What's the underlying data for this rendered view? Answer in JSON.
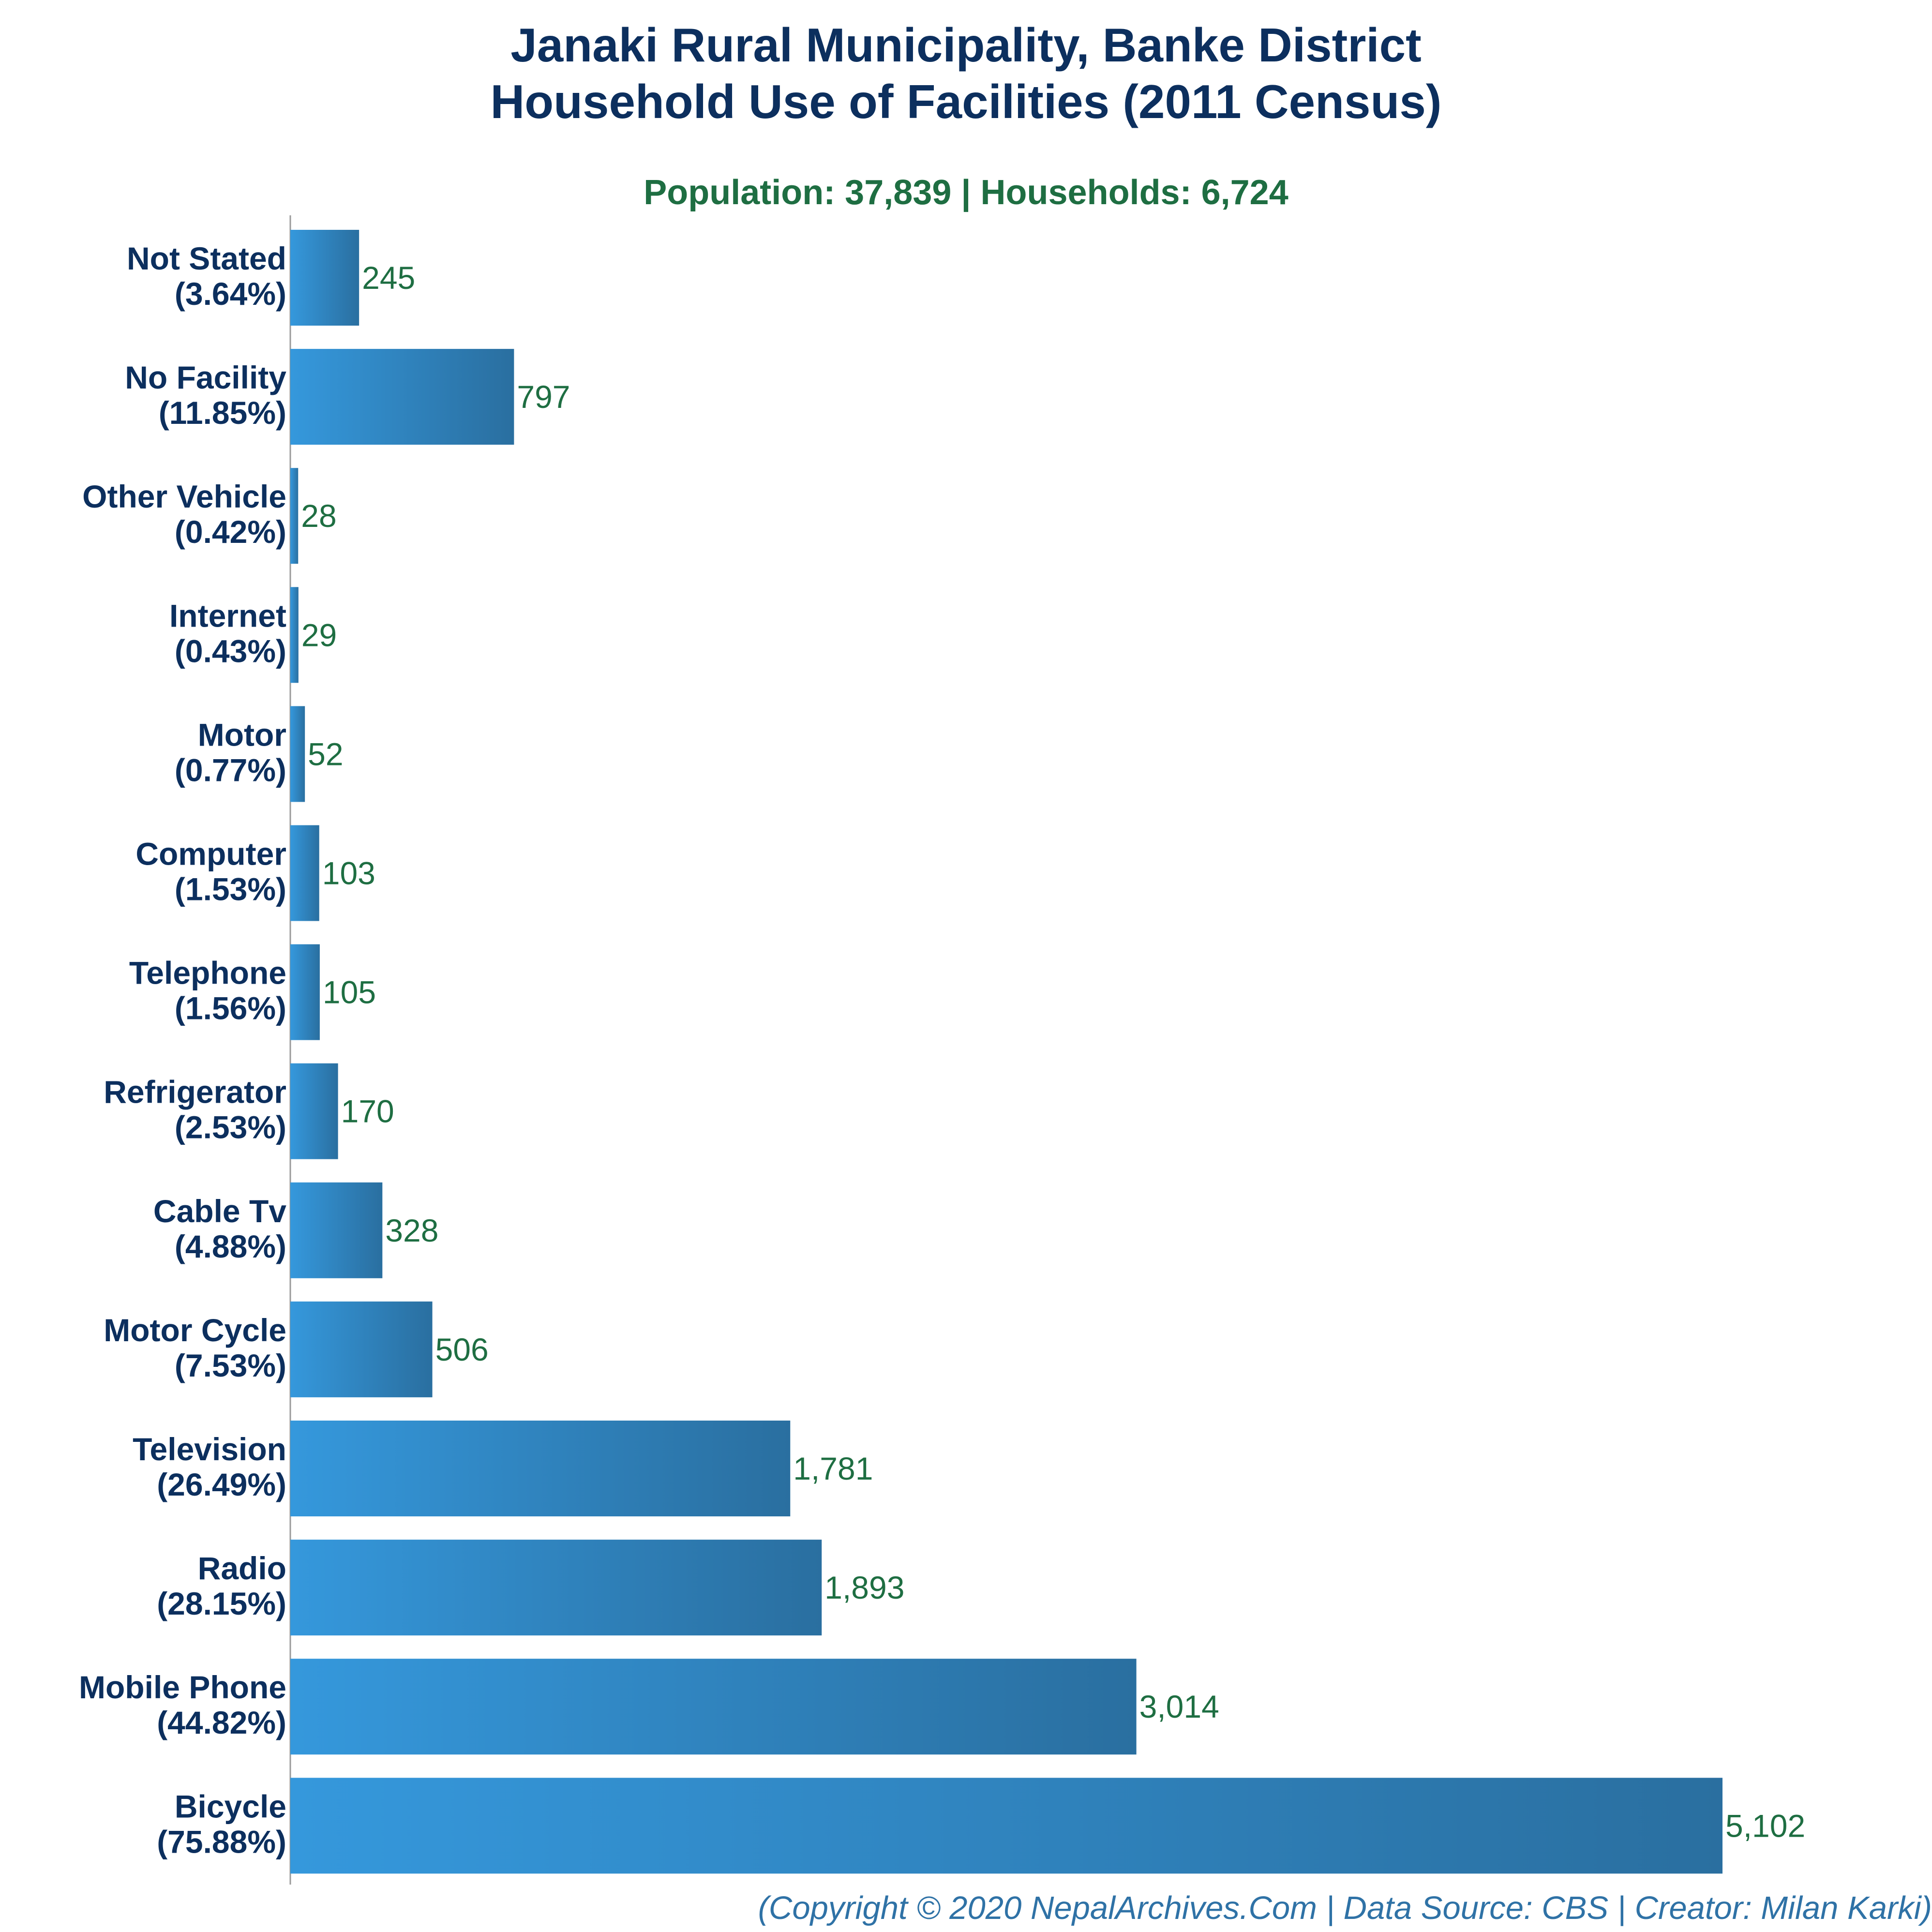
{
  "title_line1": "Janaki Rural Municipality, Banke District",
  "title_line2": "Household Use of Facilities (2011 Census)",
  "subtitle": "Population: 37,839 | Households: 6,724",
  "footer": "(Copyright © 2020 NepalArchives.Com | Data Source: CBS | Creator: Milan Karki)",
  "colors": {
    "title": "#0c2f5e",
    "subtitle": "#1e6e42",
    "bar_left": "#3598dc",
    "bar_right": "#2a6fa0",
    "value_label": "#1e6e42",
    "footer": "#2f72a6"
  },
  "chart_data": {
    "type": "bar",
    "orientation": "horizontal",
    "categories": [
      "Not Stated",
      "No Facility",
      "Other Vehicle",
      "Internet",
      "Motor",
      "Computer",
      "Telephone",
      "Refrigerator",
      "Cable Tv",
      "Motor Cycle",
      "Television",
      "Radio",
      "Mobile Phone",
      "Bicycle"
    ],
    "percent_labels": [
      "(3.64%)",
      "(11.85%)",
      "(0.42%)",
      "(0.43%)",
      "(0.77%)",
      "(1.53%)",
      "(1.56%)",
      "(2.53%)",
      "(4.88%)",
      "(7.53%)",
      "(26.49%)",
      "(28.15%)",
      "(44.82%)",
      "(75.88%)"
    ],
    "values": [
      245,
      797,
      28,
      29,
      52,
      103,
      105,
      170,
      328,
      506,
      1781,
      1893,
      3014,
      5102
    ],
    "value_labels": [
      "245",
      "797",
      "28",
      "29",
      "52",
      "103",
      "105",
      "170",
      "328",
      "506",
      "1,781",
      "1,893",
      "3,014",
      "5,102"
    ],
    "title": "Janaki Rural Municipality, Banke District Household Use of Facilities (2011 Census)",
    "xlabel": "",
    "ylabel": "",
    "xlim": [
      0,
      5102
    ],
    "grid": false,
    "legend": "none"
  }
}
